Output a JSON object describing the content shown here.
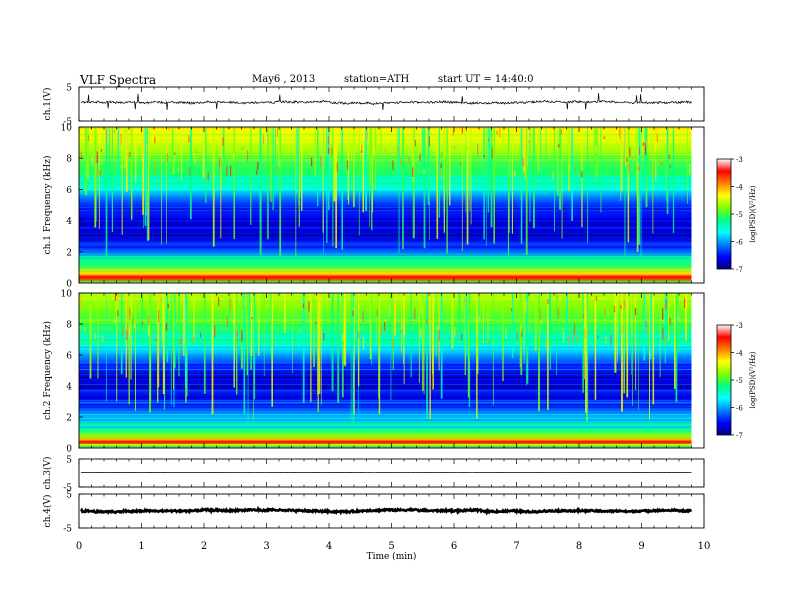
{
  "header": {
    "title": "VLF Spectra",
    "date": "May6 , 2013",
    "station": "station=ATH",
    "start": "start UT = 14:40:0"
  },
  "colors": {
    "colormap": [
      "#000080",
      "#0000ff",
      "#0080ff",
      "#00ffff",
      "#00ff80",
      "#80ff00",
      "#ffff00",
      "#ff8000",
      "#ff0000",
      "#ffffff"
    ]
  },
  "chart_data": [
    {
      "type": "line",
      "title": "",
      "ylabel": "ch.1(V)",
      "ylim": [
        -5,
        5
      ],
      "yticks": [
        "5",
        "-5"
      ],
      "xlim": [
        0,
        10
      ],
      "description_values": {
        "baseline_V": 0.5,
        "noise_amplitude_V": 0.6
      }
    },
    {
      "type": "heatmap",
      "ylabel": "ch.1  Frequency (kHz)",
      "ylim": [
        0,
        10
      ],
      "yticks": [
        0,
        2,
        4,
        6,
        8,
        10
      ],
      "xlim": [
        0,
        10
      ],
      "data_end_min": 9.8,
      "colorbar": {
        "label": "log(PSD)(V²/Hz)",
        "range": [
          -7,
          -3
        ],
        "ticks": [
          "-3",
          "-4",
          "-5",
          "-6",
          "-7"
        ]
      },
      "spectrum_profile": [
        {
          "f": 0.0,
          "v": -5.0
        },
        {
          "f": 0.3,
          "v": -3.6
        },
        {
          "f": 0.6,
          "v": -4.2
        },
        {
          "f": 1.0,
          "v": -5.0
        },
        {
          "f": 1.5,
          "v": -5.3
        },
        {
          "f": 2.0,
          "v": -6.2
        },
        {
          "f": 2.5,
          "v": -6.4
        },
        {
          "f": 3.0,
          "v": -6.7
        },
        {
          "f": 4.0,
          "v": -6.6
        },
        {
          "f": 5.0,
          "v": -6.4
        },
        {
          "f": 5.5,
          "v": -6.1
        },
        {
          "f": 6.0,
          "v": -5.6
        },
        {
          "f": 6.5,
          "v": -5.4
        },
        {
          "f": 7.0,
          "v": -5.2
        },
        {
          "f": 8.0,
          "v": -4.9
        },
        {
          "f": 9.0,
          "v": -4.5
        },
        {
          "f": 10.0,
          "v": -4.3
        }
      ]
    },
    {
      "type": "heatmap",
      "ylabel": "ch.2  Frequency (kHz)",
      "ylim": [
        0,
        10
      ],
      "yticks": [
        0,
        2,
        4,
        6,
        8,
        10
      ],
      "xlim": [
        0,
        10
      ],
      "data_end_min": 9.8,
      "colorbar": {
        "label": "log(PSD)(V²/Hz)",
        "range": [
          -7,
          -3
        ],
        "ticks": [
          "-3",
          "-4",
          "-5",
          "-6",
          "-7"
        ]
      },
      "spectrum_profile": [
        {
          "f": 0.0,
          "v": -5.2
        },
        {
          "f": 0.4,
          "v": -4.0
        },
        {
          "f": 0.8,
          "v": -4.7
        },
        {
          "f": 1.2,
          "v": -5.4
        },
        {
          "f": 2.0,
          "v": -5.9
        },
        {
          "f": 2.5,
          "v": -6.3
        },
        {
          "f": 3.0,
          "v": -6.5
        },
        {
          "f": 4.0,
          "v": -6.7
        },
        {
          "f": 5.0,
          "v": -6.5
        },
        {
          "f": 5.5,
          "v": -6.3
        },
        {
          "f": 6.0,
          "v": -6.0
        },
        {
          "f": 6.5,
          "v": -5.6
        },
        {
          "f": 7.0,
          "v": -5.4
        },
        {
          "f": 8.0,
          "v": -5.1
        },
        {
          "f": 9.0,
          "v": -4.8
        },
        {
          "f": 10.0,
          "v": -4.6
        }
      ]
    },
    {
      "type": "line",
      "ylabel": "ch.3(V)",
      "ylim": [
        -5,
        5
      ],
      "yticks": [
        "5",
        "-5"
      ],
      "xlim": [
        0,
        10
      ],
      "description_values": {
        "baseline_V": 0.2,
        "noise_amplitude_V": 0.05
      }
    },
    {
      "type": "line",
      "ylabel": "ch.4(V)",
      "ylim": [
        -5,
        5
      ],
      "yticks": [
        "5",
        "-5"
      ],
      "xlim": [
        0,
        10
      ],
      "description_values": {
        "baseline_V": 0.0,
        "noise_amplitude_V": 0.5
      }
    }
  ],
  "x_axis": {
    "label": "Time (min)",
    "ticks": [
      "0",
      "1",
      "2",
      "3",
      "4",
      "5",
      "6",
      "7",
      "8",
      "9",
      "10"
    ]
  }
}
